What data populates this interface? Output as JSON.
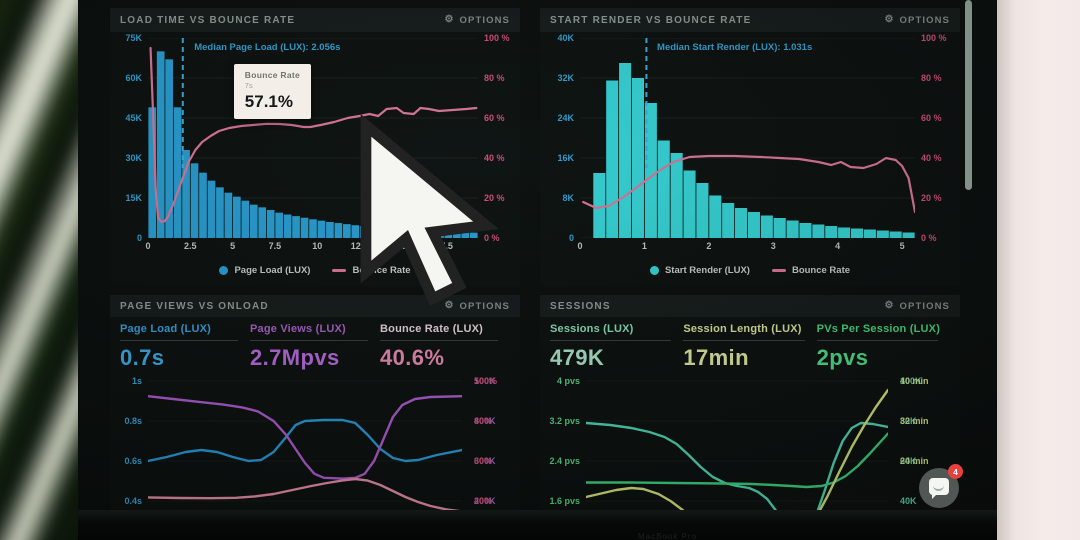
{
  "page": {
    "bezel_text": "MacBook Pro"
  },
  "icons": {
    "gear": "⚙"
  },
  "chat": {
    "badge": "4"
  },
  "palette": {
    "cyan": "#35a9e0",
    "pink": "#e0517e",
    "purple": "#a96cc6",
    "mintteal": "#5cd6b4",
    "green": "#5cd98c",
    "yellow": "#dcec8e"
  },
  "panels": {
    "load_time": {
      "title": "LOAD TIME VS BOUNCE RATE",
      "options_label": "OPTIONS",
      "median_label": "Median Page Load (LUX): 2.056s",
      "tooltip": {
        "title": "Bounce Rate",
        "subtitle": "7s",
        "value": "57.1%"
      },
      "legend": [
        "Page Load (LUX)",
        "Bounce Rate"
      ]
    },
    "start_render": {
      "title": "START RENDER VS BOUNCE RATE",
      "options_label": "OPTIONS",
      "median_label": "Median Start Render (LUX): 1.031s",
      "legend": [
        "Start Render (LUX)",
        "Bounce Rate"
      ]
    },
    "page_views": {
      "title": "PAGE VIEWS VS ONLOAD",
      "options_label": "OPTIONS",
      "metrics": [
        {
          "label": "Page Load (LUX)",
          "value": "0.7s",
          "label_color": "#38a8e8",
          "value_color": "#41b4f0"
        },
        {
          "label": "Page Views (LUX)",
          "value": "2.7Mpvs",
          "label_color": "#b066d0",
          "value_color": "#c06ee8"
        },
        {
          "label": "Bounce Rate (LUX)",
          "value": "40.6%",
          "label_color": "#f2dde8",
          "value_color": "#f490b8"
        }
      ]
    },
    "sessions": {
      "title": "SESSIONS",
      "options_label": "OPTIONS",
      "metrics": [
        {
          "label": "Sessions (LUX)",
          "value": "479K",
          "label_color": "#8fe8c2",
          "value_color": "#b4f0d2"
        },
        {
          "label": "Session Length (LUX)",
          "value": "17min",
          "label_color": "#e2f0a4",
          "value_color": "#e8f5a8"
        },
        {
          "label": "PVs Per Session (LUX)",
          "value": "2pvs",
          "label_color": "#4ade85",
          "value_color": "#52e88f"
        }
      ]
    }
  },
  "chart_data": [
    {
      "id": "load_time",
      "type": "bar",
      "title": "LOAD TIME VS BOUNCE RATE",
      "x_range": [
        0,
        19.5
      ],
      "x_tick_values": [
        0,
        2.5,
        5,
        7.5,
        10,
        12.5,
        15,
        17.5
      ],
      "x_tick_labels": [
        "0",
        "2.5",
        "5",
        "7.5",
        "10",
        "12.5",
        "15",
        "17.5"
      ],
      "left_ticks": [
        "75K",
        "60K",
        "45K",
        "30K",
        "15K",
        "0"
      ],
      "right_ticks": [
        "100 %",
        "80 %",
        "60 %",
        "40 %",
        "20 %",
        "0 %"
      ],
      "k_max": 75,
      "bars": {
        "bin_width": 0.5,
        "units": "K pageviews",
        "values_k": [
          49,
          70,
          67,
          49,
          33,
          28,
          24.5,
          21.5,
          19,
          17,
          15.5,
          14,
          12.5,
          11.5,
          10.5,
          9.5,
          8.8,
          8.2,
          7.6,
          7,
          6.5,
          6,
          5.6,
          5.2,
          4.8,
          4.5,
          4.2,
          3.9,
          3.6,
          3.4,
          3.2,
          3,
          2.8,
          2.6,
          2.4,
          2.3,
          2.2,
          2.1,
          2
        ]
      },
      "line": {
        "name": "Bounce Rate",
        "units": "%",
        "points": [
          [
            0.15,
            95
          ],
          [
            0.3,
            62
          ],
          [
            0.45,
            25
          ],
          [
            0.6,
            10
          ],
          [
            0.8,
            8
          ],
          [
            1.0,
            8.5
          ],
          [
            1.2,
            11
          ],
          [
            1.5,
            17
          ],
          [
            1.8,
            24
          ],
          [
            2.1,
            31
          ],
          [
            2.4,
            38
          ],
          [
            2.8,
            44
          ],
          [
            3.2,
            48
          ],
          [
            3.7,
            51
          ],
          [
            4.2,
            53.5
          ],
          [
            4.8,
            55
          ],
          [
            5.5,
            56
          ],
          [
            6.2,
            56.5
          ],
          [
            7.0,
            57.1
          ],
          [
            7.8,
            57
          ],
          [
            8.5,
            56.5
          ],
          [
            9.2,
            55.5
          ],
          [
            9.6,
            55.5
          ],
          [
            10.2,
            56.5
          ],
          [
            11,
            58
          ],
          [
            11.8,
            60
          ],
          [
            12.5,
            61
          ],
          [
            13.1,
            62
          ],
          [
            13.6,
            61
          ],
          [
            14.1,
            64.5
          ],
          [
            14.7,
            65
          ],
          [
            15.1,
            62.5
          ],
          [
            15.7,
            62
          ],
          [
            16.1,
            65
          ],
          [
            16.6,
            64.5
          ],
          [
            17.2,
            63.5
          ],
          [
            18,
            64
          ],
          [
            18.8,
            64.5
          ],
          [
            19.4,
            65
          ]
        ]
      },
      "median": {
        "x": 2.056,
        "label": "Median Page Load (LUX): 2.056s"
      },
      "colors": {
        "bar": "#2aa6de",
        "line": "#e87ca0",
        "median": "#3fb7e8"
      }
    },
    {
      "id": "start_render",
      "type": "bar",
      "title": "START RENDER VS BOUNCE RATE",
      "x_range": [
        0,
        5.2
      ],
      "x_tick_values": [
        0,
        1,
        2,
        3,
        4,
        5
      ],
      "x_tick_labels": [
        "0",
        "1",
        "2",
        "3",
        "4",
        "5"
      ],
      "left_ticks": [
        "40K",
        "32K",
        "24K",
        "16K",
        "8K",
        "0"
      ],
      "right_ticks": [
        "100 %",
        "80 %",
        "60 %",
        "40 %",
        "20 %",
        "0 %"
      ],
      "k_max": 40,
      "bars": {
        "bin_width": 0.2,
        "units": "K pageviews",
        "values_k": [
          0,
          13,
          31.5,
          35,
          32,
          27,
          19.5,
          17,
          13.5,
          11,
          8.5,
          7,
          6,
          5.2,
          4.5,
          4,
          3.5,
          3,
          2.7,
          2.4,
          2.1,
          1.9,
          1.7,
          1.5,
          1.3,
          1.1
        ]
      },
      "line": {
        "name": "Bounce Rate",
        "units": "%",
        "points": [
          [
            0.05,
            18
          ],
          [
            0.25,
            15
          ],
          [
            0.45,
            16
          ],
          [
            0.7,
            21
          ],
          [
            0.95,
            27
          ],
          [
            1.2,
            33
          ],
          [
            1.45,
            38
          ],
          [
            1.7,
            40.5
          ],
          [
            2.0,
            41
          ],
          [
            2.4,
            41
          ],
          [
            2.8,
            40.5
          ],
          [
            3.1,
            40
          ],
          [
            3.4,
            39.5
          ],
          [
            3.7,
            38
          ],
          [
            3.9,
            36.5
          ],
          [
            4.05,
            38
          ],
          [
            4.2,
            35.5
          ],
          [
            4.4,
            35
          ],
          [
            4.6,
            37
          ],
          [
            4.75,
            40
          ],
          [
            4.9,
            39
          ],
          [
            5.0,
            36
          ],
          [
            5.1,
            30
          ],
          [
            5.2,
            13
          ]
        ]
      },
      "median": {
        "x": 1.031,
        "label": "Median Start Render (LUX): 1.031s"
      },
      "colors": {
        "bar": "#38dfe2",
        "line": "#e87ca0",
        "median": "#3fb7e8"
      }
    },
    {
      "id": "page_views",
      "type": "line",
      "title": "PAGE VIEWS VS ONLOAD",
      "left_ticks": [
        "1s",
        "0.8s",
        "0.6s",
        "0.4s"
      ],
      "right_tick_pairs": [
        [
          "500K",
          "100%"
        ],
        [
          "400K",
          "80%"
        ],
        [
          "300K",
          "60%"
        ],
        [
          "200K",
          "40%"
        ]
      ],
      "series": [
        {
          "name": "Page Load (LUX)",
          "units": "s",
          "color": "#2a9fe0",
          "scale_top": 1,
          "scale_bottom": 0.4,
          "points": [
            [
              0,
              0.6
            ],
            [
              6,
              0.62
            ],
            [
              12,
              0.645
            ],
            [
              17,
              0.655
            ],
            [
              22,
              0.645
            ],
            [
              27,
              0.62
            ],
            [
              32,
              0.6
            ],
            [
              36,
              0.605
            ],
            [
              40,
              0.645
            ],
            [
              44,
              0.72
            ],
            [
              47,
              0.78
            ],
            [
              50,
              0.8
            ],
            [
              56,
              0.805
            ],
            [
              62,
              0.805
            ],
            [
              66,
              0.79
            ],
            [
              70,
              0.73
            ],
            [
              74,
              0.66
            ],
            [
              78,
              0.615
            ],
            [
              82,
              0.6
            ],
            [
              86,
              0.605
            ],
            [
              92,
              0.63
            ],
            [
              100,
              0.655
            ]
          ]
        },
        {
          "name": "Page Views (LUX)",
          "units": "K",
          "color": "#b55fd6",
          "scale_top": 500,
          "scale_bottom": 200,
          "points": [
            [
              0,
              462
            ],
            [
              8,
              455
            ],
            [
              16,
              448
            ],
            [
              24,
              441
            ],
            [
              30,
              434
            ],
            [
              35,
              424
            ],
            [
              40,
              400
            ],
            [
              44,
              365
            ],
            [
              47,
              330
            ],
            [
              50,
              295
            ],
            [
              53,
              268
            ],
            [
              56,
              258
            ],
            [
              62,
              256
            ],
            [
              66,
              258
            ],
            [
              69,
              268
            ],
            [
              72,
              300
            ],
            [
              75,
              355
            ],
            [
              78,
              410
            ],
            [
              81,
              440
            ],
            [
              85,
              455
            ],
            [
              90,
              460
            ],
            [
              100,
              462
            ]
          ]
        },
        {
          "name": "Bounce Rate (LUX)",
          "units": "%",
          "color": "#ee93ac",
          "scale_top": 100,
          "scale_bottom": 40,
          "points": [
            [
              0,
              41.8
            ],
            [
              10,
              41.5
            ],
            [
              20,
              41.4
            ],
            [
              28,
              41.6
            ],
            [
              34,
              42.3
            ],
            [
              40,
              43.5
            ],
            [
              46,
              45.5
            ],
            [
              52,
              47.5
            ],
            [
              57,
              49
            ],
            [
              62,
              50.3
            ],
            [
              66,
              51
            ],
            [
              70,
              50.2
            ],
            [
              74,
              48
            ],
            [
              78,
              45
            ],
            [
              82,
              42
            ],
            [
              86,
              39.5
            ],
            [
              90,
              37.5
            ],
            [
              95,
              35.8
            ],
            [
              100,
              34.8
            ]
          ]
        }
      ]
    },
    {
      "id": "sessions",
      "type": "line",
      "title": "SESSIONS",
      "left_ticks": [
        "4 pvs",
        "3.2 pvs",
        "2.4 pvs",
        "1.6 pvs"
      ],
      "right_tick_pairs": [
        [
          "100K",
          "40 min"
        ],
        [
          "80K",
          "32 min"
        ],
        [
          "60K",
          "24 min"
        ],
        [
          "40K",
          ""
        ]
      ],
      "series": [
        {
          "name": "Sessions (LUX)",
          "units": "K",
          "color": "#52e0bb",
          "scale_top": 100,
          "scale_bottom": 40,
          "points": [
            [
              0,
              79
            ],
            [
              8,
              78
            ],
            [
              15,
              76.5
            ],
            [
              21,
              74.5
            ],
            [
              26,
              72
            ],
            [
              30,
              68.5
            ],
            [
              34,
              63
            ],
            [
              38,
              57
            ],
            [
              42,
              52
            ],
            [
              46,
              49
            ],
            [
              50,
              47.5
            ],
            [
              54,
              46.5
            ],
            [
              57,
              44.5
            ],
            [
              60,
              41
            ],
            [
              62,
              37
            ],
            [
              64,
              33
            ],
            [
              66,
              28
            ],
            [
              68,
              23
            ],
            [
              70,
              20
            ],
            [
              72,
              21
            ],
            [
              74,
              25
            ],
            [
              76,
              32
            ],
            [
              79,
              45
            ],
            [
              82,
              59
            ],
            [
              85,
              70
            ],
            [
              88,
              76.5
            ],
            [
              91,
              79
            ],
            [
              95,
              78.5
            ],
            [
              100,
              77
            ]
          ]
        },
        {
          "name": "PVs Per Session (LUX)",
          "units": "pvs",
          "color": "#3fd984",
          "scale_top": 4,
          "scale_bottom": 1.6,
          "points": [
            [
              0,
              1.97
            ],
            [
              15,
              1.97
            ],
            [
              30,
              1.96
            ],
            [
              45,
              1.95
            ],
            [
              55,
              1.94
            ],
            [
              62,
              1.92
            ],
            [
              68,
              1.9
            ],
            [
              73,
              1.88
            ],
            [
              78,
              1.9
            ],
            [
              82,
              1.97
            ],
            [
              86,
              2.1
            ],
            [
              90,
              2.3
            ],
            [
              94,
              2.55
            ],
            [
              97,
              2.75
            ],
            [
              100,
              2.95
            ]
          ]
        },
        {
          "name": "Session Length (LUX)",
          "units": "min",
          "color": "#dced7c",
          "scale_top": 40,
          "scale_bottom": 16,
          "points": [
            [
              0,
              16.8
            ],
            [
              5,
              17.5
            ],
            [
              10,
              18.2
            ],
            [
              15,
              18.6
            ],
            [
              19,
              18.4
            ],
            [
              24,
              17.4
            ],
            [
              28,
              16
            ],
            [
              32,
              14.2
            ],
            [
              36,
              12.2
            ],
            [
              40,
              10.2
            ],
            [
              44,
              8.4
            ],
            [
              48,
              7
            ],
            [
              52,
              6
            ],
            [
              56,
              5.4
            ],
            [
              60,
              5.2
            ],
            [
              64,
              5.6
            ],
            [
              68,
              6.8
            ],
            [
              72,
              9
            ],
            [
              76,
              12.5
            ],
            [
              80,
              17
            ],
            [
              84,
              22
            ],
            [
              88,
              26.8
            ],
            [
              92,
              31
            ],
            [
              96,
              34.8
            ],
            [
              100,
              38.2
            ]
          ]
        }
      ]
    }
  ]
}
